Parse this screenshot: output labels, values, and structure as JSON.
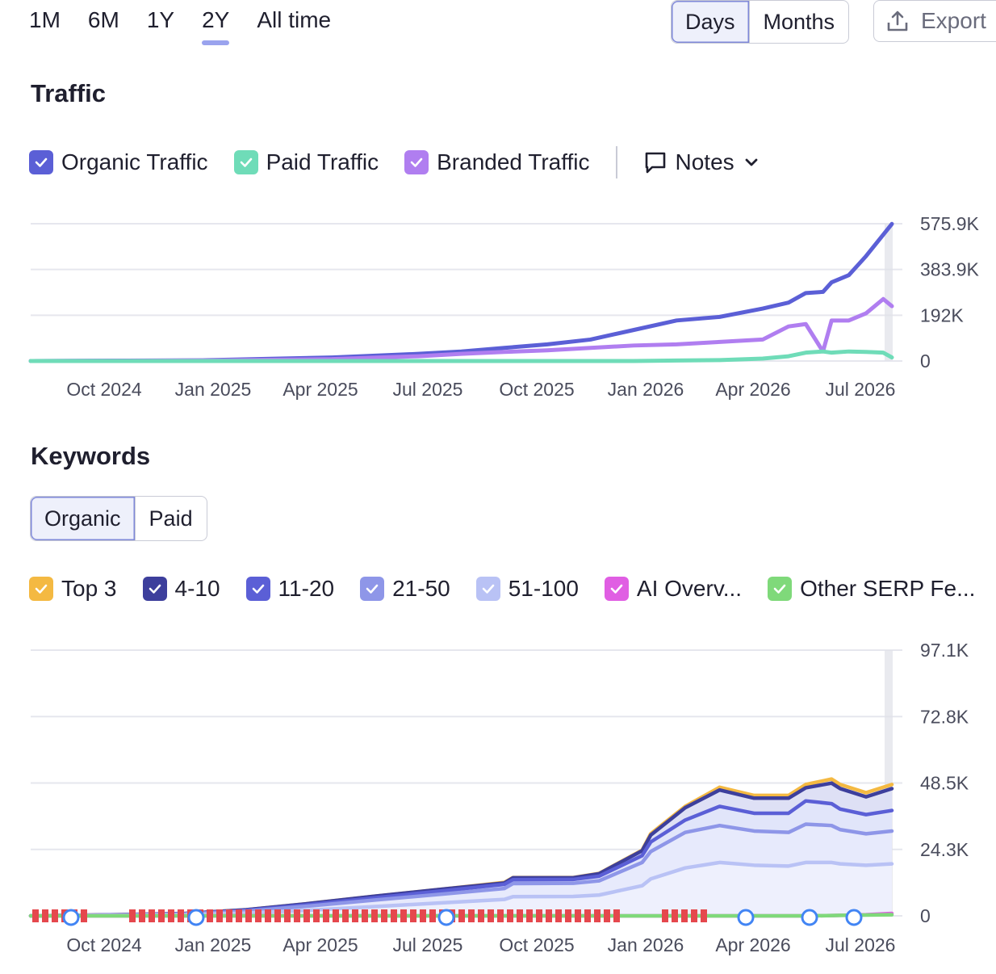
{
  "range_tabs": [
    {
      "label": "1M",
      "active": false
    },
    {
      "label": "6M",
      "active": false
    },
    {
      "label": "1Y",
      "active": false
    },
    {
      "label": "2Y",
      "active": true
    },
    {
      "label": "All time",
      "active": false
    }
  ],
  "granularity": {
    "days": "Days",
    "months": "Months",
    "active": "Days"
  },
  "export_label": "Export",
  "traffic": {
    "title": "Traffic",
    "legend": [
      {
        "label": "Organic Traffic",
        "color": "#5b5fd6"
      },
      {
        "label": "Paid Traffic",
        "color": "#6fdcb8"
      },
      {
        "label": "Branded Traffic",
        "color": "#b07ef0"
      }
    ],
    "notes_label": "Notes"
  },
  "keywords": {
    "title": "Keywords",
    "tabs": {
      "organic": "Organic",
      "paid": "Paid",
      "active": "Organic"
    },
    "legend": [
      {
        "label": "Top 3",
        "color": "#f4b942"
      },
      {
        "label": "4-10",
        "color": "#3d3f9c"
      },
      {
        "label": "11-20",
        "color": "#5b5fd6"
      },
      {
        "label": "21-50",
        "color": "#8e96e8"
      },
      {
        "label": "51-100",
        "color": "#b9c2f5"
      },
      {
        "label": "AI Overv...",
        "color": "#e05ee3"
      },
      {
        "label": "Other SERP Fe...",
        "color": "#7fd97a"
      }
    ]
  },
  "chart_data": [
    {
      "type": "line",
      "x_ticks": [
        "Oct 2024",
        "Jan 2025",
        "Apr 2025",
        "Jul 2025",
        "Oct 2025",
        "Jan 2026",
        "Apr 2026",
        "Jul 2026"
      ],
      "y_ticks": [
        "575.9K",
        "383.9K",
        "192K",
        "0"
      ],
      "ylim": [
        0,
        575900
      ],
      "x": [
        0,
        0.2,
        0.35,
        0.45,
        0.5,
        0.55,
        0.6,
        0.65,
        0.7,
        0.75,
        0.8,
        0.85,
        0.88,
        0.9,
        0.92,
        0.93,
        0.95,
        0.97,
        0.99,
        1.0
      ],
      "series": [
        {
          "name": "Organic Traffic",
          "color": "#5b5fd6",
          "values": [
            0,
            3000,
            15000,
            30000,
            40000,
            55000,
            70000,
            90000,
            130000,
            170000,
            185000,
            220000,
            245000,
            285000,
            290000,
            330000,
            360000,
            440000,
            530000,
            575000
          ]
        },
        {
          "name": "Branded Traffic",
          "color": "#b07ef0",
          "values": [
            0,
            2000,
            8000,
            20000,
            30000,
            38000,
            45000,
            55000,
            65000,
            70000,
            80000,
            90000,
            145000,
            155000,
            40000,
            170000,
            170000,
            200000,
            260000,
            230000
          ]
        },
        {
          "name": "Paid Traffic",
          "color": "#6fdcb8",
          "values": [
            0,
            0,
            0,
            0,
            0,
            0,
            0,
            0,
            0,
            2000,
            4000,
            10000,
            20000,
            35000,
            40000,
            35000,
            40000,
            38000,
            35000,
            15000
          ]
        }
      ]
    },
    {
      "type": "area",
      "x_ticks": [
        "Oct 2024",
        "Jan 2025",
        "Apr 2025",
        "Jul 2025",
        "Oct 2025",
        "Jan 2026",
        "Apr 2026",
        "Jul 2026"
      ],
      "y_ticks": [
        "97.1K",
        "72.8K",
        "48.5K",
        "24.3K",
        "0"
      ],
      "ylim": [
        0,
        97100
      ],
      "x": [
        0,
        0.1,
        0.18,
        0.25,
        0.32,
        0.4,
        0.48,
        0.55,
        0.56,
        0.63,
        0.66,
        0.71,
        0.72,
        0.76,
        0.8,
        0.84,
        0.88,
        0.9,
        0.93,
        0.94,
        0.97,
        1.0
      ],
      "series": [
        {
          "name": "Top 3",
          "color": "#f4b942",
          "values": [
            0,
            400,
            900,
            2200,
            4400,
            7200,
            9800,
            12200,
            14000,
            14000,
            15500,
            24000,
            30000,
            40000,
            47000,
            44000,
            44000,
            48000,
            50000,
            48000,
            45000,
            48000
          ]
        },
        {
          "name": "4-10",
          "color": "#3d3f9c",
          "values": [
            0,
            400,
            900,
            2200,
            4400,
            7200,
            9800,
            12000,
            13900,
            13900,
            15400,
            23800,
            29500,
            39500,
            46000,
            43000,
            43000,
            46800,
            48500,
            46500,
            43500,
            46500
          ]
        },
        {
          "name": "11-20",
          "color": "#5b5fd6",
          "values": [
            0,
            350,
            800,
            2000,
            4000,
            6600,
            9200,
            11500,
            13200,
            13300,
            14500,
            22000,
            27000,
            35000,
            40000,
            37500,
            37500,
            42000,
            41000,
            39000,
            37000,
            38500
          ]
        },
        {
          "name": "21-50",
          "color": "#8e96e8",
          "values": [
            0,
            300,
            700,
            1700,
            3500,
            5800,
            8000,
            10000,
            11800,
            11900,
            12800,
            19500,
            23500,
            30500,
            33000,
            31000,
            30500,
            33500,
            33000,
            31500,
            30000,
            31000
          ]
        },
        {
          "name": "51-100",
          "color": "#b9c2f5",
          "values": [
            0,
            200,
            400,
            1000,
            2000,
            3400,
            4800,
            6000,
            7000,
            7100,
            7600,
            11000,
            13500,
            17500,
            19500,
            18500,
            18200,
            19500,
            19500,
            19000,
            18500,
            19000
          ]
        },
        {
          "name": "AI Overv...",
          "color": "#e05ee3",
          "values": [
            0,
            0,
            0,
            0,
            0,
            0,
            0,
            0,
            0,
            0,
            0,
            0,
            0,
            0,
            0,
            0,
            0,
            0,
            100,
            200,
            400,
            900
          ]
        },
        {
          "name": "Other SERP Fe...",
          "color": "#7fd97a",
          "values": [
            0,
            0,
            0,
            0,
            0,
            0,
            0,
            0,
            0,
            0,
            0,
            0,
            0,
            0,
            0,
            0,
            0,
            0,
            100,
            200,
            300,
            400
          ]
        }
      ]
    }
  ]
}
